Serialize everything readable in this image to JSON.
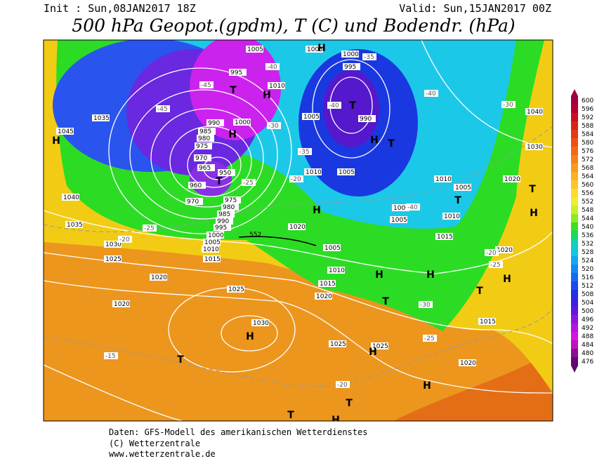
{
  "header": {
    "init": "Init : Sun,08JAN2017 18Z",
    "valid": "Valid: Sun,15JAN2017 00Z",
    "title": "500 hPa Geopot.(gpdm), T (C) und Bodendr. (hPa)"
  },
  "footer": {
    "lines": [
      "Daten: GFS-Modell des amerikanischen Wetterdienstes",
      "(C) Wetterzentrale",
      "www.wetterzentrale.de"
    ]
  },
  "colorbar": {
    "ticks": [
      "600",
      "596",
      "592",
      "588",
      "584",
      "580",
      "576",
      "572",
      "568",
      "564",
      "560",
      "556",
      "552",
      "548",
      "544",
      "540",
      "536",
      "532",
      "528",
      "524",
      "520",
      "516",
      "512",
      "508",
      "504",
      "500",
      "496",
      "492",
      "488",
      "484",
      "480",
      "476"
    ],
    "colors": [
      "#a0003c",
      "#b4002c",
      "#c8101e",
      "#d82418",
      "#e43a14",
      "#ec5214",
      "#f06a14",
      "#f4821a",
      "#f89a1e",
      "#fcb022",
      "#fcc628",
      "#fcdc2c",
      "#f0ec30",
      "#c8f028",
      "#8cec20",
      "#3ce020",
      "#18d86c",
      "#14d0b4",
      "#14c4e4",
      "#14a8f0",
      "#1488f4",
      "#1868f4",
      "#1c48f0",
      "#2030e8",
      "#3c20e0",
      "#6018dc",
      "#8c14dc",
      "#b414e0",
      "#d414e4",
      "#c010c0",
      "#8c0c94",
      "#600870"
    ]
  },
  "map": {
    "pressure_labels": [
      "1005",
      "1005",
      "1000",
      "995",
      "995",
      "1010",
      "990",
      "1000",
      "985",
      "980",
      "975",
      "970",
      "965",
      "960",
      "950",
      "970",
      "975",
      "980",
      "985",
      "990",
      "995",
      "1000",
      "1005",
      "1010",
      "1015",
      "1045",
      "1035",
      "1040",
      "1035",
      "1030",
      "1025",
      "1020",
      "1020",
      "1025",
      "1030",
      "1025",
      "1025",
      "1020",
      "1010",
      "1005",
      "1000",
      "1005",
      "1010",
      "1015",
      "1020",
      "1015",
      "1010",
      "1005",
      "1010",
      "1020",
      "1040",
      "1030",
      "1020",
      "1015",
      "1020",
      "990",
      "995",
      "1005",
      "1005"
    ],
    "temperature_labels": [
      "-40",
      "-45",
      "-40",
      "-40",
      "-35",
      "-30",
      "-20",
      "-25",
      "-20",
      "-25",
      "-20",
      "-15",
      "-25",
      "-30",
      "-25",
      "-20",
      "-40",
      "-30",
      "-45",
      "-35"
    ],
    "markers": [
      "H",
      "H",
      "H",
      "T",
      "T",
      "H",
      "T",
      "H",
      "T",
      "H",
      "T",
      "H",
      "H",
      "T",
      "H",
      "T",
      "H",
      "H",
      "H",
      "T",
      "T",
      "H",
      "T",
      "T",
      "H"
    ],
    "isoline_label": "552"
  }
}
